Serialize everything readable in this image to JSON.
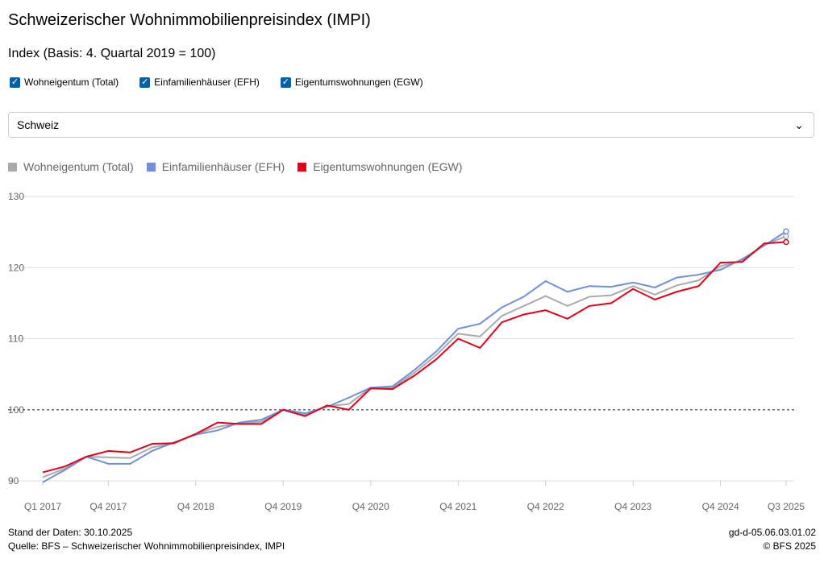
{
  "title": "Schweizerischer Wohnimmobilienpreisindex (IMPI)",
  "subtitle": "Index (Basis: 4. Quartal 2019 = 100)",
  "checkboxes": [
    {
      "label": "Wohneigentum (Total)",
      "checked": true
    },
    {
      "label": "Einfamilienhäuser (EFH)",
      "checked": true
    },
    {
      "label": "Eigentumswohnungen (EGW)",
      "checked": true
    }
  ],
  "region_select": {
    "value": "Schweiz",
    "icon": "chevron-down-icon"
  },
  "footer": {
    "stand": "Stand der Daten: 30.10.2025",
    "quelle": "Quelle: BFS – Schweizerischer Wohnimmobilienpreisindex, IMPI",
    "code": "gd-d-05.06.03.01.02",
    "copyright": "© BFS 2025"
  },
  "chart_data": {
    "type": "line",
    "ylim": [
      90,
      130
    ],
    "yticks": [
      90,
      100,
      110,
      120,
      130
    ],
    "reference_line": 100,
    "grid": true,
    "legend_placement": "top-left",
    "xticks": [
      "Q1 2017",
      "Q4 2017",
      "Q4 2018",
      "Q4 2019",
      "Q4 2020",
      "Q4 2021",
      "Q4 2022",
      "Q4 2023",
      "Q4 2024",
      "Q3 2025"
    ],
    "xtick_index": [
      0,
      3,
      7,
      11,
      15,
      19,
      23,
      27,
      31,
      34
    ],
    "x": [
      "Q1 2017",
      "Q2 2017",
      "Q3 2017",
      "Q4 2017",
      "Q1 2018",
      "Q2 2018",
      "Q3 2018",
      "Q4 2018",
      "Q1 2019",
      "Q2 2019",
      "Q3 2019",
      "Q4 2019",
      "Q1 2020",
      "Q2 2020",
      "Q3 2020",
      "Q4 2020",
      "Q1 2021",
      "Q2 2021",
      "Q3 2021",
      "Q4 2021",
      "Q1 2022",
      "Q2 2022",
      "Q3 2022",
      "Q4 2022",
      "Q1 2023",
      "Q2 2023",
      "Q3 2023",
      "Q4 2023",
      "Q1 2024",
      "Q2 2024",
      "Q3 2024",
      "Q4 2024",
      "Q1 2025",
      "Q2 2025",
      "Q3 2025"
    ],
    "series": [
      {
        "name": "Wohneigentum (Total)",
        "color": "#aaaaaa",
        "values": [
          90.5,
          91.7,
          93.4,
          93.3,
          93.2,
          94.7,
          95.3,
          96.6,
          97.6,
          98.1,
          98.3,
          100,
          99.3,
          100.5,
          100.8,
          103.1,
          103.1,
          105.2,
          107.7,
          110.7,
          110.3,
          113.2,
          114.6,
          116.0,
          114.6,
          115.9,
          116.1,
          117.4,
          116.2,
          117.5,
          118.2,
          120.2,
          121.0,
          123.2,
          124.4
        ]
      },
      {
        "name": "Einfamilienhäuser (EFH)",
        "color": "#7090da",
        "values": [
          89.8,
          91.5,
          93.4,
          92.4,
          92.4,
          94.2,
          95.4,
          96.5,
          97.1,
          98.2,
          98.6,
          100,
          99.5,
          100.4,
          101.7,
          103.1,
          103.3,
          105.6,
          108.2,
          111.4,
          112.1,
          114.4,
          115.9,
          118.1,
          116.6,
          117.4,
          117.3,
          117.9,
          117.2,
          118.6,
          119.0,
          119.7,
          121.2,
          123.1,
          125.1
        ]
      },
      {
        "name": "Eigentumswohnungen (EGW)",
        "color": "#e0001b",
        "values": [
          91.2,
          92.0,
          93.4,
          94.2,
          94.0,
          95.2,
          95.3,
          96.6,
          98.2,
          98.0,
          98.0,
          100,
          99.1,
          100.6,
          100.0,
          103.0,
          102.9,
          104.8,
          107.1,
          110.0,
          108.7,
          112.3,
          113.4,
          114.0,
          112.8,
          114.6,
          115.0,
          117.0,
          115.5,
          116.6,
          117.4,
          120.7,
          120.8,
          123.4,
          123.6
        ]
      }
    ]
  }
}
